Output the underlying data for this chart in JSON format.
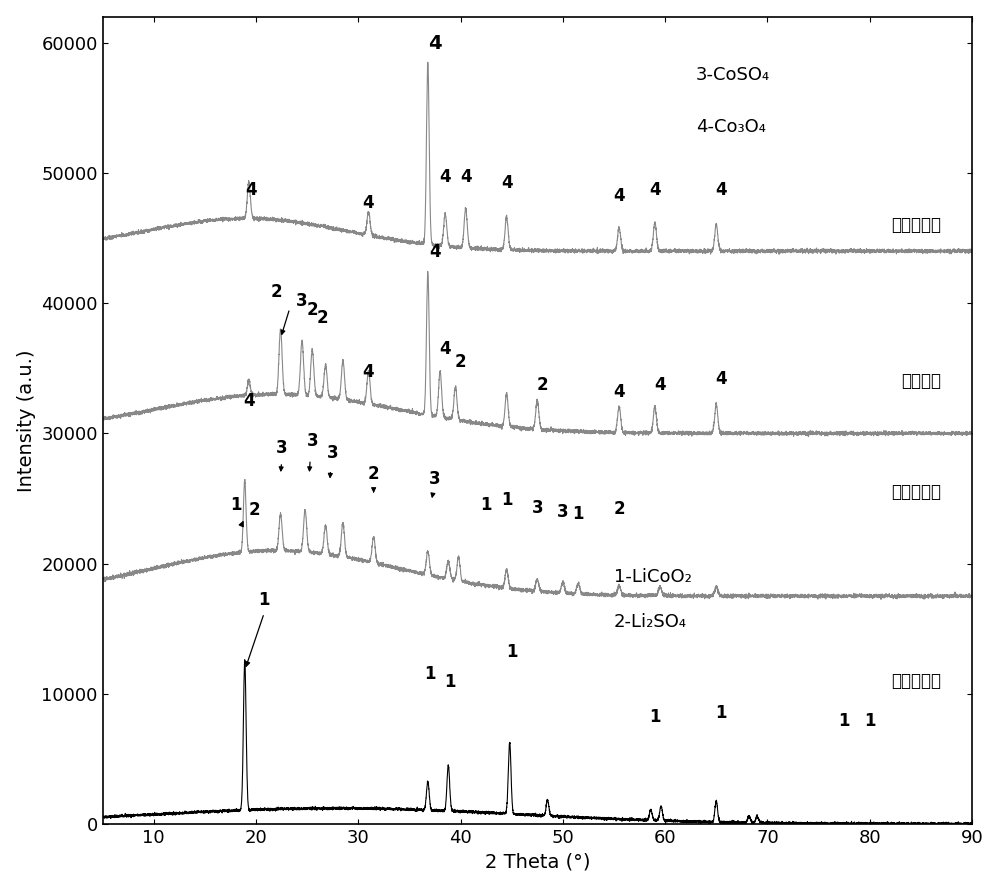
{
  "xlabel": "2 Theta (°)",
  "ylabel": "Intensity (a.u.)",
  "xlim": [
    5,
    90
  ],
  "ylim": [
    0,
    62000
  ],
  "yticks": [
    0,
    10000,
    20000,
    30000,
    40000,
    50000,
    60000
  ],
  "xticks": [
    10,
    20,
    30,
    40,
    50,
    60,
    70,
    80,
    90
  ],
  "background_color": "#ffffff",
  "curve_color_black": "#000000",
  "curve_color_gray": "#888888",
  "annotation_fontsize": 12,
  "axis_label_fontsize": 14,
  "tick_fontsize": 13,
  "phase_line1": "3-CoSO₄",
  "phase_line2": "4-Co₃O₄",
  "sample_labels": [
    "浸出固体渣",
    "焋烧产物",
    "中间混合物",
    "钒酸锂原料"
  ],
  "phase_legend_line1": "1-LiCoO₂",
  "phase_legend_line2": "2-Li₂SO₄",
  "offsets": [
    0,
    17500,
    30000,
    44000
  ]
}
